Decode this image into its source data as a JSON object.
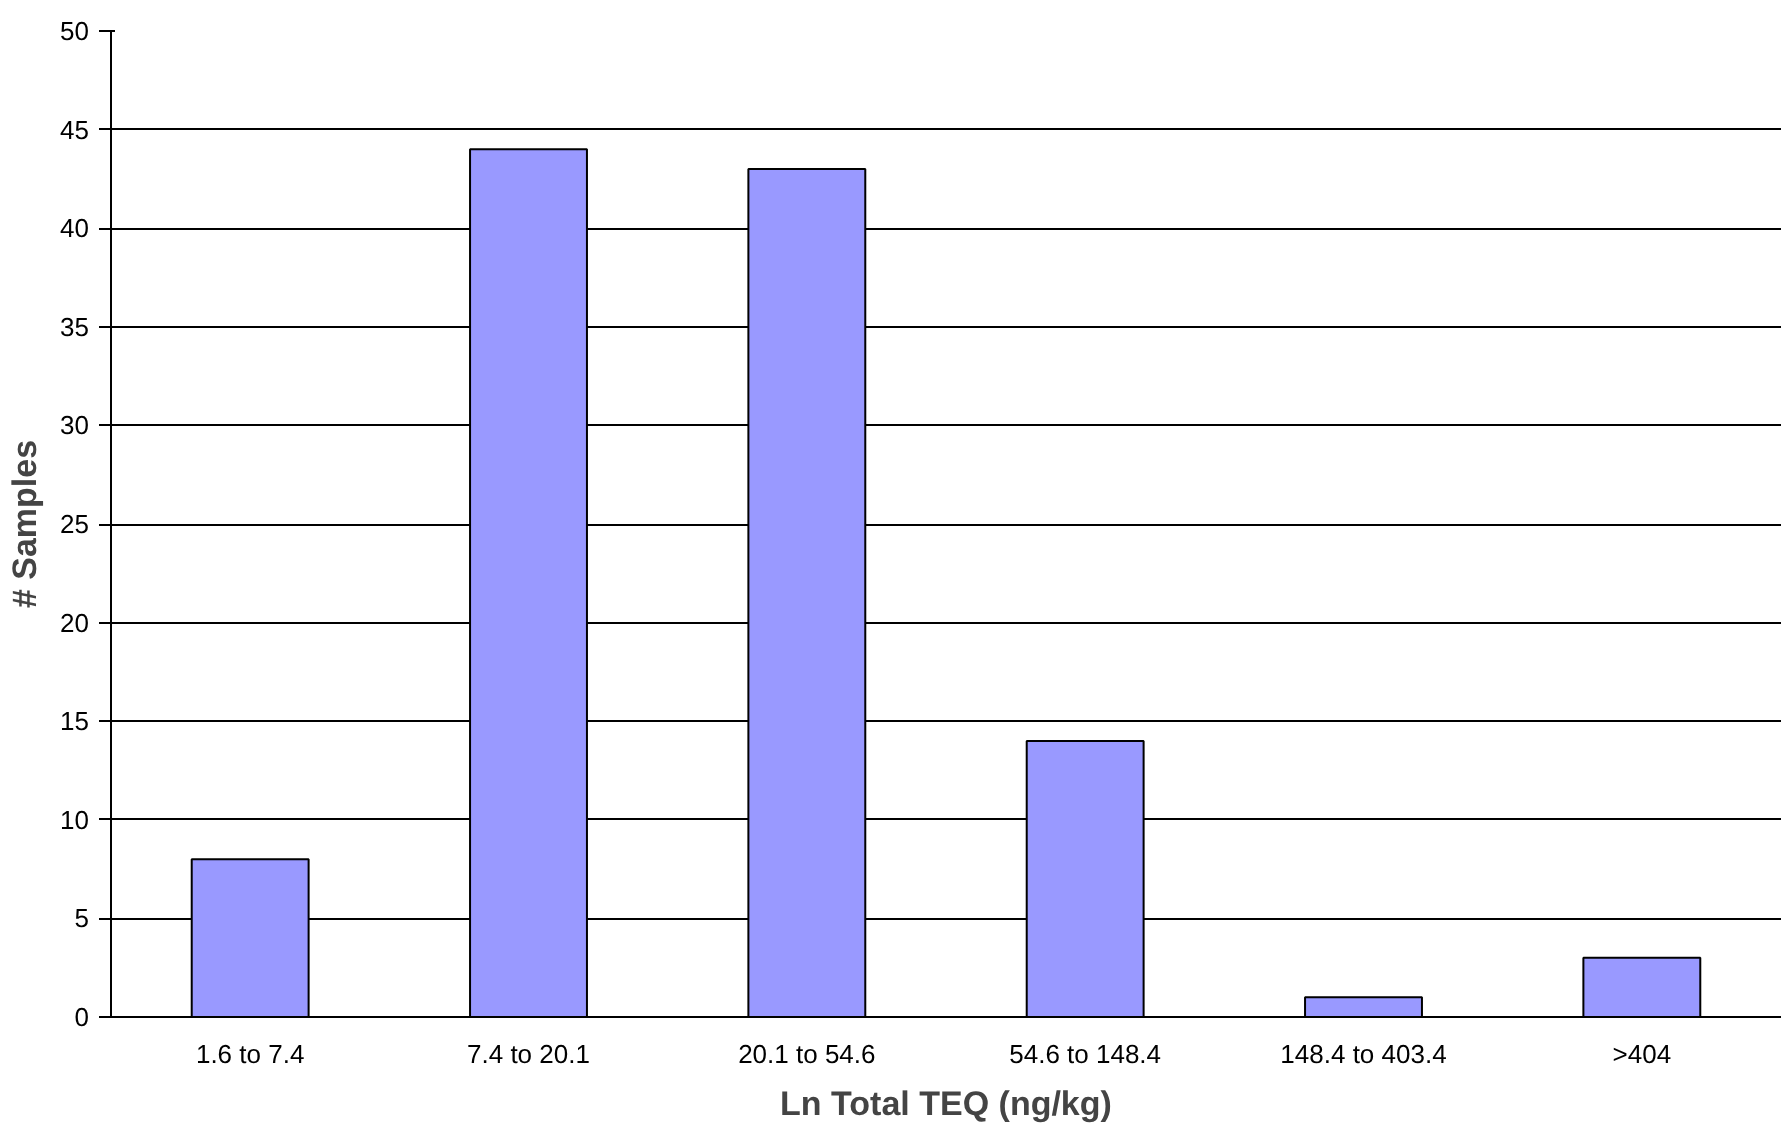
{
  "chart_data": {
    "type": "bar",
    "xlabel": "Ln Total TEQ (ng/kg)",
    "ylabel": "# Samples",
    "categories": [
      "1.6 to 7.4",
      "7.4 to 20.1",
      "20.1 to 54.6",
      "54.6 to 148.4",
      "148.4 to 403.4",
      ">404"
    ],
    "values": [
      8,
      44,
      43,
      14,
      1,
      3
    ],
    "color": "#9999ff",
    "ylim": [
      0,
      50
    ],
    "yticks": [
      0,
      5,
      10,
      15,
      20,
      25,
      30,
      35,
      40,
      45,
      50
    ],
    "grid": "y"
  }
}
